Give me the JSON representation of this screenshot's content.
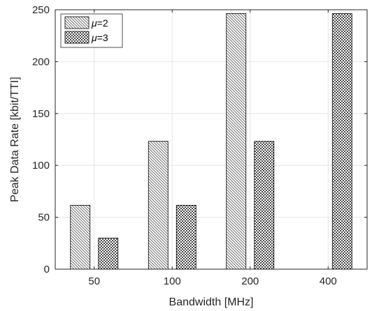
{
  "chart_data": {
    "type": "bar",
    "categories": [
      "50",
      "100",
      "200",
      "400"
    ],
    "series": [
      {
        "name": "μ=2",
        "legend_symbol": "μ",
        "legend_suffix": "=2",
        "pattern": "diagonal-hatch",
        "values": [
          61.6,
          123.2,
          246.4,
          null
        ]
      },
      {
        "name": "μ=3",
        "legend_symbol": "μ",
        "legend_suffix": "=3",
        "pattern": "dots",
        "values": [
          30.0,
          61.6,
          123.2,
          246.4
        ]
      }
    ],
    "xlabel": "Bandwidth [MHz]",
    "ylabel": "Peak Data Rate [kbit/TTI]",
    "ylim": [
      0,
      250
    ],
    "yticks": [
      0,
      50,
      100,
      150,
      200,
      250
    ],
    "grid": true,
    "legend_position": "top-left"
  }
}
